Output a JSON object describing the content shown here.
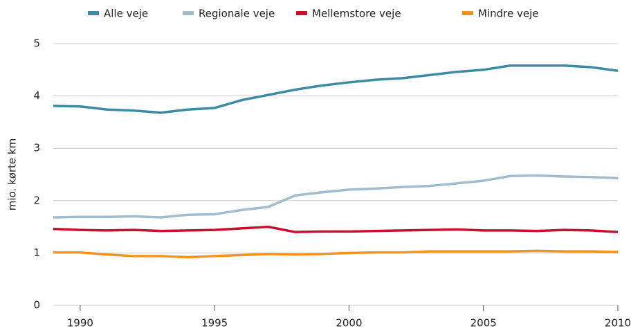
{
  "chart_data": {
    "type": "line",
    "y_label": "mio. kørte km",
    "x": [
      1989,
      1990,
      1991,
      1992,
      1993,
      1994,
      1995,
      1996,
      1997,
      1998,
      1999,
      2000,
      2001,
      2002,
      2003,
      2004,
      2005,
      2006,
      2007,
      2008,
      2009,
      2010
    ],
    "series": [
      {
        "name": "Alle veje",
        "color": "#3b8ba3",
        "values": [
          3.81,
          3.8,
          3.74,
          3.72,
          3.68,
          3.74,
          3.77,
          3.92,
          4.02,
          4.12,
          4.2,
          4.26,
          4.31,
          4.34,
          4.4,
          4.46,
          4.5,
          4.58,
          4.58,
          4.58,
          4.55,
          4.48
        ]
      },
      {
        "name": "Regionale veje",
        "color": "#a0bccd",
        "values": [
          1.68,
          1.69,
          1.69,
          1.7,
          1.68,
          1.73,
          1.74,
          1.82,
          1.88,
          2.1,
          2.16,
          2.21,
          2.23,
          2.26,
          2.28,
          2.33,
          2.38,
          2.47,
          2.48,
          2.46,
          2.45,
          2.43
        ]
      },
      {
        "name": "Mellemstore veje",
        "color": "#c8102e",
        "values": [
          1.46,
          1.44,
          1.43,
          1.44,
          1.42,
          1.43,
          1.44,
          1.47,
          1.5,
          1.4,
          1.41,
          1.41,
          1.42,
          1.43,
          1.44,
          1.45,
          1.43,
          1.43,
          1.42,
          1.44,
          1.43,
          1.4
        ]
      },
      {
        "name": "Mindre veje",
        "color": "#f39323",
        "values": [
          1.01,
          1.01,
          0.97,
          0.94,
          0.94,
          0.92,
          0.94,
          0.96,
          0.98,
          0.97,
          0.98,
          1.0,
          1.01,
          1.01,
          1.03,
          1.03,
          1.03,
          1.03,
          1.04,
          1.03,
          1.03,
          1.02
        ]
      }
    ],
    "xlim": [
      1989,
      2010
    ],
    "xticks": [
      1990,
      1995,
      2000,
      2005,
      2010
    ],
    "ylim": [
      0,
      5
    ],
    "yticks": [
      0,
      1,
      2,
      3,
      4,
      5
    ],
    "grid": true,
    "legend": "top"
  }
}
